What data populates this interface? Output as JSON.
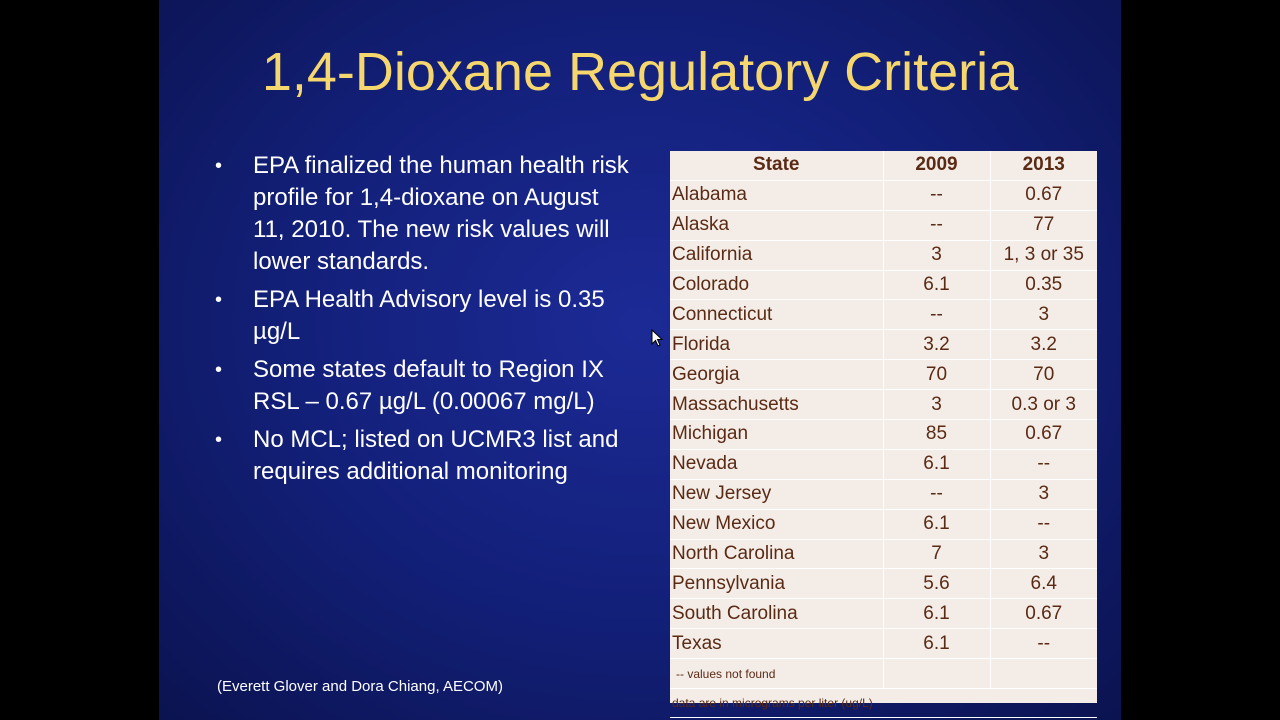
{
  "slide": {
    "title": "1,4-Dioxane Regulatory Criteria",
    "bullets": [
      "EPA finalized the human health risk profile for 1,4-dioxane on August 11, 2010. The new risk values will lower standards.",
      "EPA Health Advisory level is 0.35 µg/L",
      "Some states default to Region IX RSL – 0.67 µg/L (0.00067 mg/L)",
      "No MCL; listed on UCMR3 list and requires additional monitoring"
    ],
    "bullet_marker": "•",
    "credit": "(Everett Glover and Dora Chiang, AECOM)"
  },
  "table": {
    "headers": [
      "State",
      "2009",
      "2013"
    ],
    "rows": [
      [
        "Alabama",
        "--",
        "0.67"
      ],
      [
        "Alaska",
        "--",
        "77"
      ],
      [
        "California",
        "3",
        "1, 3 or 35"
      ],
      [
        "Colorado",
        "6.1",
        "0.35"
      ],
      [
        "Connecticut",
        "--",
        "3"
      ],
      [
        "Florida",
        "3.2",
        "3.2"
      ],
      [
        "Georgia",
        "70",
        "70"
      ],
      [
        "Massachusetts",
        "3",
        "0.3 or 3"
      ],
      [
        "Michigan",
        "85",
        "0.67"
      ],
      [
        "Nevada",
        "6.1",
        "--"
      ],
      [
        "New Jersey",
        "--",
        "3"
      ],
      [
        "New Mexico",
        "6.1",
        "--"
      ],
      [
        "North Carolina",
        "7",
        "3"
      ],
      [
        "Pennsylvania",
        "5.6",
        "6.4"
      ],
      [
        "South Carolina",
        "6.1",
        "0.67"
      ],
      [
        "Texas",
        "6.1",
        "--"
      ]
    ],
    "footnote_missing": "-- values not found",
    "footnote_units": "data are in micrograms per liter (ug/L)"
  },
  "colors": {
    "title": "#f5d76e",
    "slide_background": "#13207a",
    "table_background": "#f4ede7",
    "table_text": "#5a2a14"
  }
}
